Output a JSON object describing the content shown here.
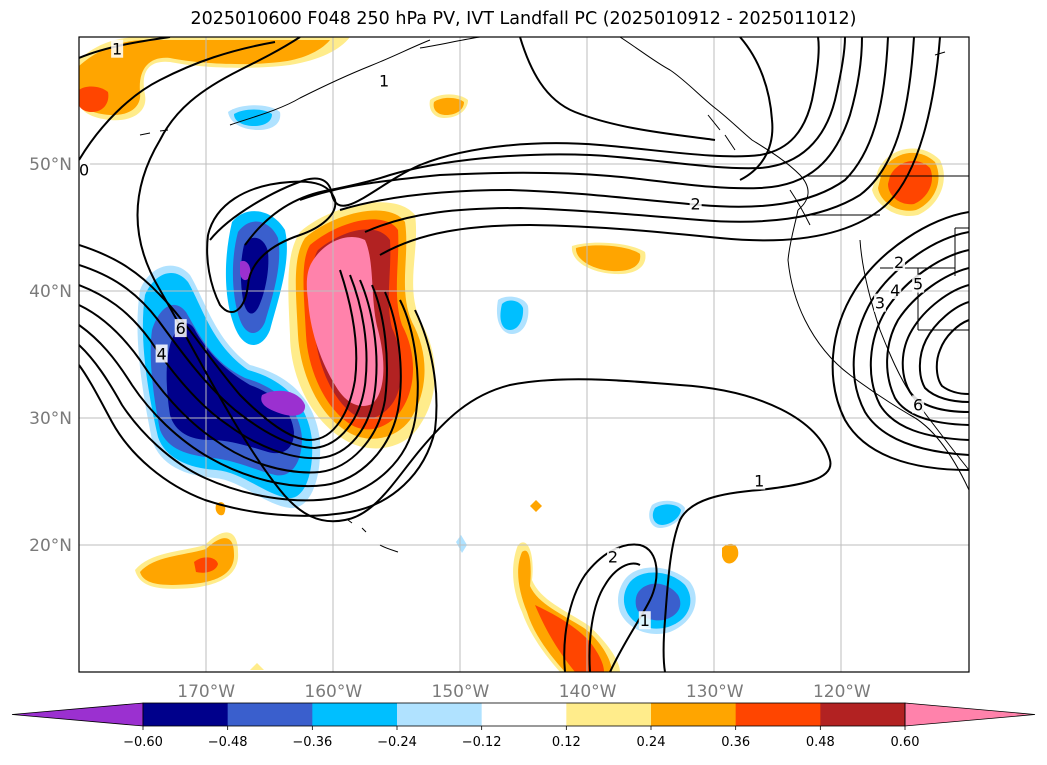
{
  "title": "2025010600 F048 250 hPa PV, IVT Landfall PC (2025010912 - 2025011012)",
  "map": {
    "lon_range": [
      -180,
      -110
    ],
    "lat_range": [
      10,
      60
    ],
    "lon_ticks": [
      {
        "lon": -170,
        "label": "170°W"
      },
      {
        "lon": -160,
        "label": "160°W"
      },
      {
        "lon": -150,
        "label": "150°W"
      },
      {
        "lon": -140,
        "label": "140°W"
      },
      {
        "lon": -130,
        "label": "130°W"
      },
      {
        "lon": -120,
        "label": "120°W"
      }
    ],
    "lat_ticks": [
      {
        "lat": 50,
        "label": "50°N"
      },
      {
        "lat": 40,
        "label": "40°N"
      },
      {
        "lat": 30,
        "label": "30°N"
      },
      {
        "lat": 20,
        "label": "20°N"
      }
    ],
    "gridlines": true
  },
  "colorbar": {
    "extend": "both",
    "levels": [
      "-0.60",
      "-0.48",
      "-0.36",
      "-0.24",
      "-0.12",
      "0.12",
      "0.24",
      "0.36",
      "0.48",
      "0.60"
    ],
    "colors": [
      "#9b30d0",
      "#00008b",
      "#3a5fcd",
      "#00bfff",
      "#b0e2ff",
      "#ffffff",
      "#ffec8b",
      "#ffa500",
      "#ff4500",
      "#b22222",
      "#ff82ab"
    ]
  },
  "contour_labels": [
    {
      "text": "2",
      "lon": -131.5,
      "lat": 46.8
    },
    {
      "text": "1",
      "lon": -126.5,
      "lat": 25.0
    },
    {
      "text": "2",
      "lon": -138.0,
      "lat": 19.0
    },
    {
      "text": "1",
      "lon": -135.5,
      "lat": 14.0
    },
    {
      "text": "1",
      "lon": -177.0,
      "lat": 59.0
    },
    {
      "text": "1",
      "lon": -156.0,
      "lat": 56.5
    },
    {
      "text": "2",
      "lon": -115.5,
      "lat": 42.2
    },
    {
      "text": "3",
      "lon": -117.0,
      "lat": 39.0
    },
    {
      "text": "4",
      "lon": -115.8,
      "lat": 40.0
    },
    {
      "text": "5",
      "lon": -114.0,
      "lat": 40.5
    },
    {
      "text": "6",
      "lon": -172.0,
      "lat": 37.0
    },
    {
      "text": "4",
      "lon": -173.5,
      "lat": 35.0
    },
    {
      "text": "6",
      "lon": -114.0,
      "lat": 31.0
    },
    {
      "text": "0",
      "lon": -179.6,
      "lat": 49.5
    }
  ],
  "pv_anomalies": [
    {
      "name": "positive-pv-anomaly-west",
      "sign": "positive",
      "peak": 0.72,
      "lon": -158.5,
      "lat": 38.0
    },
    {
      "name": "negative-pv-anomaly-southwest",
      "sign": "negative",
      "peak": -0.65,
      "lon": -167.0,
      "lat": 31.0
    },
    {
      "name": "negative-pv-anomaly-north",
      "sign": "negative",
      "peak": -0.62,
      "lon": -165.5,
      "lat": 42.0
    },
    {
      "name": "positive-pv-anomaly-gulf",
      "sign": "positive",
      "peak": 0.36,
      "lon": -176.0,
      "lat": 55.0
    },
    {
      "name": "positive-pv-anomaly-idaho",
      "sign": "positive",
      "peak": 0.48,
      "lon": -114.5,
      "lat": 48.5
    },
    {
      "name": "positive-pv-anomaly-subtropical",
      "sign": "positive",
      "peak": 0.48,
      "lon": -138.0,
      "lat": 14.0
    },
    {
      "name": "negative-pv-anomaly-subtropical",
      "sign": "negative",
      "peak": -0.4,
      "lon": -134.0,
      "lat": 15.5
    },
    {
      "name": "positive-pv-anomaly-hawaii-west",
      "sign": "positive",
      "peak": 0.4,
      "lon": -170.0,
      "lat": 18.0
    }
  ]
}
